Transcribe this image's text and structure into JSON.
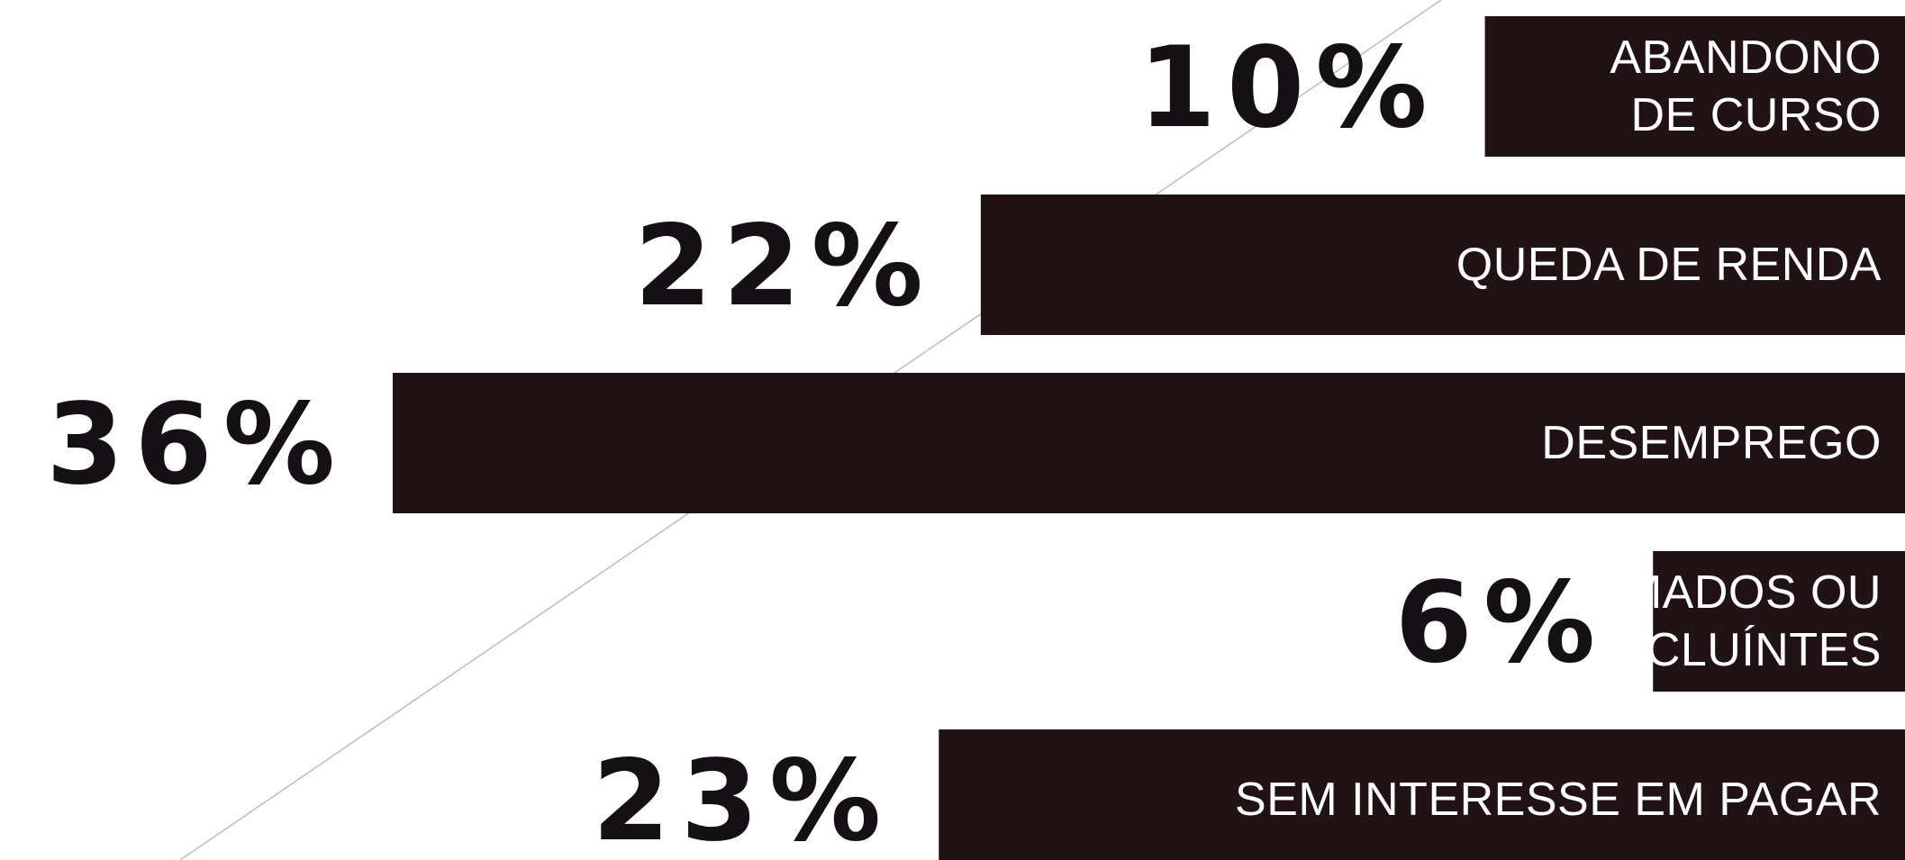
{
  "chart_data": {
    "type": "bar",
    "orientation": "horizontal",
    "title": "",
    "xlabel": "",
    "ylabel": "",
    "categories": [
      "ABANDONO DE CURSO",
      "QUEDA DE RENDA",
      "DESEMPREGO",
      "FORMADOS OU CONCLUÍNTES",
      "SEM INTERESSE EM PAGAR"
    ],
    "category_lines": [
      [
        "ABANDONO",
        "DE CURSO"
      ],
      [
        "QUEDA DE RENDA"
      ],
      [
        "DESEMPREGO"
      ],
      [
        "FORMADOS OU",
        "CONCLUÍNTES"
      ],
      [
        "SEM INTERESSE EM PAGAR"
      ]
    ],
    "values": [
      10,
      22,
      36,
      6,
      23
    ],
    "value_labels": [
      "10%",
      "22%",
      "36%",
      "6%",
      "23%"
    ],
    "xlim": [
      0,
      40
    ],
    "bar_anchor": "right",
    "grid": false,
    "legend": "none"
  },
  "colors": {
    "bar": "#211315",
    "bar_text": "#ffffff",
    "value_text": "#141014",
    "decor_line": "#bdbdbd",
    "background": "#ffffff"
  }
}
